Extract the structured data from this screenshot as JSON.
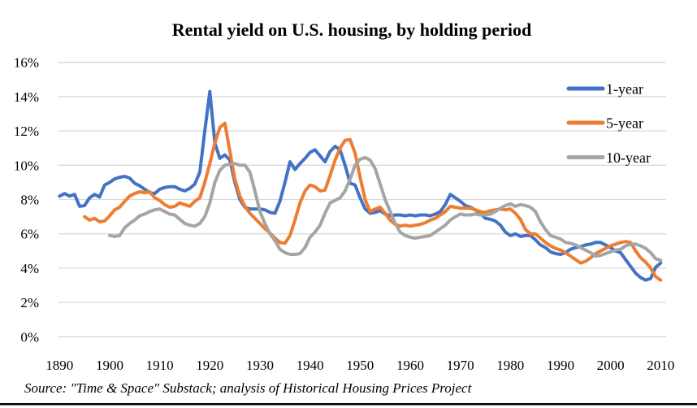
{
  "source_note": "Source: \"Time & Space\" Substack; analysis of Historical Housing Prices Project",
  "colors": {
    "series_1yr": "#4472C4",
    "series_5yr": "#ED7D31",
    "series_10yr": "#A5A5A5",
    "gridline": "#D9D9D9",
    "bottom_rule": "#000000"
  },
  "legend": [
    {
      "label": "1-year",
      "color": "#4472C4"
    },
    {
      "label": "5-year",
      "color": "#ED7D31"
    },
    {
      "label": "10-year",
      "color": "#A5A5A5"
    }
  ],
  "chart_data": {
    "type": "line",
    "title": "Rental yield on U.S. housing, by holding period",
    "xlabel": "",
    "ylabel": "",
    "xlim": [
      1890,
      2010
    ],
    "ylim": [
      0,
      16
    ],
    "grid": true,
    "legend_position": "right-inside-top",
    "x_ticks": [
      {
        "v": 1890,
        "label": "1890"
      },
      {
        "v": 1900,
        "label": "1900"
      },
      {
        "v": 1910,
        "label": "1910"
      },
      {
        "v": 1920,
        "label": "1920"
      },
      {
        "v": 1930,
        "label": "1930"
      },
      {
        "v": 1940,
        "label": "1940"
      },
      {
        "v": 1950,
        "label": "1950"
      },
      {
        "v": 1960,
        "label": "1960"
      },
      {
        "v": 1970,
        "label": "1970"
      },
      {
        "v": 1980,
        "label": "1980"
      },
      {
        "v": 1990,
        "label": "1990"
      },
      {
        "v": 2000,
        "label": "2000"
      },
      {
        "v": 2010,
        "label": "2010"
      }
    ],
    "y_ticks": [
      {
        "v": 0,
        "label": "0%"
      },
      {
        "v": 2,
        "label": "2%"
      },
      {
        "v": 4,
        "label": "4%"
      },
      {
        "v": 6,
        "label": "6%"
      },
      {
        "v": 8,
        "label": "8%"
      },
      {
        "v": 10,
        "label": "10%"
      },
      {
        "v": 12,
        "label": "12%"
      },
      {
        "v": 14,
        "label": "14%"
      },
      {
        "v": 16,
        "label": "16%"
      }
    ],
    "series": [
      {
        "name": "1-year",
        "color": "#4472C4",
        "start_year": 1890,
        "values": [
          8.2,
          8.35,
          8.2,
          8.3,
          7.6,
          7.65,
          8.1,
          8.3,
          8.15,
          8.85,
          9.0,
          9.2,
          9.3,
          9.35,
          9.25,
          8.95,
          8.8,
          8.6,
          8.4,
          8.35,
          8.6,
          8.7,
          8.75,
          8.75,
          8.6,
          8.5,
          8.65,
          8.9,
          9.6,
          12.0,
          14.3,
          11.3,
          10.4,
          10.6,
          10.3,
          9.0,
          8.0,
          7.55,
          7.45,
          7.45,
          7.45,
          7.4,
          7.25,
          7.2,
          7.9,
          9.0,
          10.2,
          9.75,
          10.1,
          10.4,
          10.75,
          10.9,
          10.55,
          10.2,
          10.8,
          11.1,
          10.9,
          10.0,
          8.95,
          8.85,
          8.1,
          7.45,
          7.2,
          7.25,
          7.35,
          7.15,
          7.05,
          7.1,
          7.1,
          7.05,
          7.1,
          7.05,
          7.1,
          7.1,
          7.05,
          7.15,
          7.3,
          7.7,
          8.3,
          8.1,
          7.9,
          7.65,
          7.55,
          7.4,
          7.2,
          6.9,
          6.85,
          6.75,
          6.5,
          6.1,
          5.9,
          6.0,
          5.85,
          5.9,
          5.9,
          5.65,
          5.35,
          5.2,
          4.95,
          4.85,
          4.8,
          4.9,
          5.1,
          5.2,
          5.25,
          5.35,
          5.4,
          5.5,
          5.5,
          5.35,
          5.2,
          5.0,
          4.9,
          4.5,
          4.1,
          3.7,
          3.45,
          3.3,
          3.4,
          4.05,
          4.3
        ]
      },
      {
        "name": "5-year",
        "color": "#ED7D31",
        "start_year": 1895,
        "values": [
          7.0,
          6.8,
          6.9,
          6.7,
          6.75,
          7.05,
          7.4,
          7.55,
          7.9,
          8.2,
          8.35,
          8.45,
          8.4,
          8.45,
          8.1,
          7.95,
          7.7,
          7.55,
          7.6,
          7.8,
          7.7,
          7.6,
          7.9,
          8.1,
          9.0,
          10.1,
          11.3,
          12.2,
          12.45,
          10.8,
          9.2,
          8.2,
          7.6,
          7.2,
          6.9,
          6.6,
          6.3,
          6.05,
          5.75,
          5.5,
          5.45,
          5.9,
          6.8,
          7.8,
          8.5,
          8.85,
          8.75,
          8.5,
          8.55,
          9.4,
          10.3,
          11.0,
          11.45,
          11.5,
          10.7,
          9.3,
          8.0,
          7.3,
          7.45,
          7.55,
          7.2,
          6.8,
          6.55,
          6.45,
          6.5,
          6.45,
          6.5,
          6.55,
          6.65,
          6.8,
          6.9,
          7.1,
          7.3,
          7.6,
          7.55,
          7.5,
          7.5,
          7.5,
          7.4,
          7.3,
          7.25,
          7.35,
          7.4,
          7.45,
          7.4,
          7.45,
          7.2,
          6.85,
          6.25,
          6.0,
          6.0,
          5.75,
          5.5,
          5.3,
          5.15,
          5.05,
          4.9,
          4.7,
          4.5,
          4.3,
          4.4,
          4.6,
          4.85,
          5.0,
          5.15,
          5.3,
          5.4,
          5.5,
          5.55,
          5.5,
          5.0,
          4.6,
          4.35,
          4.0,
          3.5,
          3.3
        ]
      },
      {
        "name": "10-year",
        "color": "#A5A5A5",
        "start_year": 1900,
        "values": [
          5.9,
          5.85,
          5.9,
          6.35,
          6.6,
          6.8,
          7.05,
          7.15,
          7.3,
          7.4,
          7.45,
          7.3,
          7.15,
          7.1,
          6.85,
          6.6,
          6.5,
          6.45,
          6.6,
          7.0,
          7.8,
          9.0,
          9.7,
          10.0,
          10.05,
          10.1,
          10.0,
          10.0,
          9.6,
          8.5,
          7.3,
          6.6,
          6.0,
          5.6,
          5.1,
          4.9,
          4.8,
          4.8,
          4.85,
          5.2,
          5.8,
          6.1,
          6.5,
          7.2,
          7.8,
          7.95,
          8.1,
          8.5,
          9.2,
          10.0,
          10.35,
          10.45,
          10.3,
          9.8,
          8.9,
          8.0,
          7.3,
          6.6,
          6.1,
          5.9,
          5.8,
          5.75,
          5.8,
          5.85,
          5.9,
          6.1,
          6.3,
          6.5,
          6.8,
          7.0,
          7.15,
          7.1,
          7.1,
          7.15,
          7.1,
          7.1,
          7.15,
          7.3,
          7.5,
          7.65,
          7.75,
          7.6,
          7.7,
          7.65,
          7.55,
          7.3,
          6.7,
          6.25,
          5.9,
          5.8,
          5.7,
          5.5,
          5.45,
          5.35,
          5.2,
          5.05,
          4.9,
          4.7,
          4.75,
          4.85,
          4.95,
          5.05,
          5.1,
          5.3,
          5.4,
          5.4,
          5.3,
          5.15,
          4.9,
          4.55,
          4.45
        ]
      }
    ]
  }
}
